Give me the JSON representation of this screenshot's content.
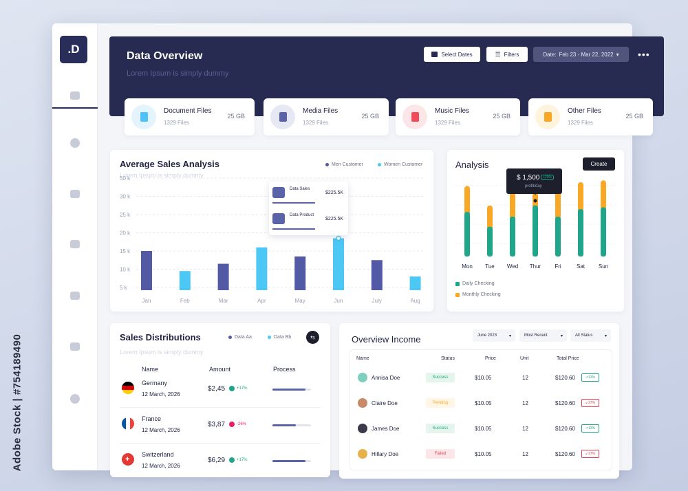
{
  "watermark": "Adobe Stock | #754189490",
  "brand": {
    "logo": ".D"
  },
  "header": {
    "title": "Data Overview",
    "subtitle": "Lorem Ipsum is simply dummy",
    "select_dates": "Select Dates",
    "filters": "Filters",
    "date_label": "Date:",
    "date_range": "Feb 23 - Mar 22, 2022",
    "more": "•••"
  },
  "files": [
    {
      "name": "Document Files",
      "count": "1329 Files",
      "size": "25 GB",
      "color": "#4fc3f7",
      "bg": "#e3f4fd"
    },
    {
      "name": "Media Files",
      "count": "1329 Files",
      "size": "25 GB",
      "color": "#5a63a8",
      "bg": "#e6e8f4"
    },
    {
      "name": "Music Files",
      "count": "1329 Files",
      "size": "25  GB",
      "color": "#ef4b5a",
      "bg": "#fde6e8"
    },
    {
      "name": "Other Files",
      "count": "1329 Files",
      "size": "25 GB",
      "color": "#f9a825",
      "bg": "#fef3dd"
    }
  ],
  "sales": {
    "title": "Average Sales Analysis",
    "subtitle": "Lorem Ipsum is simply dummy",
    "legend": [
      "Men Customer",
      "Women Customer"
    ],
    "tooltip": [
      {
        "label": "Data Sales",
        "value": "$225.5K"
      },
      {
        "label": "Data Product",
        "value": "$225.5K"
      }
    ]
  },
  "analysis": {
    "title": "Analysis",
    "create": "Create",
    "tooltip_value": "$ 1,500",
    "tooltip_badge": "+20%",
    "tooltip_sub": "profit/day",
    "legend": [
      "Daily Checking",
      "Monthly Checking"
    ]
  },
  "distribution": {
    "title": "Sales Distributions",
    "subtitle": "Lorem Ipsum is simply dummy",
    "legend": [
      "Data Aa",
      "Data Bb"
    ],
    "cols": [
      "Name",
      "Amount",
      "Process"
    ],
    "rows": [
      {
        "country": "Germany",
        "date": "12 March, 2026",
        "amount": "$2,45",
        "change": "+17%",
        "progress": 0.85
      },
      {
        "country": "France",
        "date": "12 March, 2026",
        "amount": "$3,87",
        "change": "-26%",
        "progress": 0.6
      },
      {
        "country": "Switzerland",
        "date": "12 March, 2026",
        "amount": "$6,29",
        "change": "+17%",
        "progress": 0.85
      }
    ]
  },
  "income": {
    "title": "Overview Income",
    "filters": [
      "June 2023",
      "Most Recent",
      "All Status"
    ],
    "cols": [
      "Name",
      "Status",
      "Price",
      "Unit",
      "Total Price"
    ],
    "rows": [
      {
        "name": "Annisa Doe",
        "status": "Success",
        "price": "$10.05",
        "unit": "12",
        "total": "$120.60",
        "trend": "13%",
        "up": true
      },
      {
        "name": "Claire Doe",
        "status": "Pending",
        "price": "$10.05",
        "unit": "12",
        "total": "$120.60",
        "trend": "27%",
        "up": false
      },
      {
        "name": "James Doe",
        "status": "Success",
        "price": "$10.05",
        "unit": "12",
        "total": "$120.60",
        "trend": "13%",
        "up": true
      },
      {
        "name": "Hillary Doe",
        "status": "Failed",
        "price": "$10.05",
        "unit": "12",
        "total": "$120.60",
        "trend": "27%",
        "up": false
      }
    ]
  },
  "chart_data": [
    {
      "type": "bar",
      "categories": [
        "Jan",
        "Feb",
        "Mar",
        "Apr",
        "May",
        "Jun",
        "July",
        "Aug"
      ],
      "series": [
        {
          "name": "Men Customer",
          "values": [
            15,
            null,
            11.5,
            null,
            13.5,
            null,
            12.5,
            null
          ]
        },
        {
          "name": "Women Customer",
          "values": [
            null,
            9.5,
            null,
            16,
            null,
            18.5,
            null,
            8
          ]
        }
      ],
      "yticks": [
        "5 k",
        "10 k",
        "15 k",
        "20 k",
        "25 k",
        "30 k",
        "50 k"
      ],
      "grid": true,
      "legend": "top-right"
    },
    {
      "type": "bar",
      "categories": [
        "Mon",
        "Tue",
        "Wed",
        "Thur",
        "Fri",
        "Sat",
        "Sun"
      ],
      "series": [
        {
          "name": "Daily Checking",
          "values": [
            48,
            32,
            43,
            55,
            43,
            51,
            53
          ]
        },
        {
          "name": "Monthly Checking",
          "values": [
            28,
            23,
            29,
            26,
            29,
            29,
            29
          ]
        }
      ],
      "stacked": true,
      "legend": "bottom-left"
    }
  ],
  "colors": {
    "men": "#525aa6",
    "women": "#4dc8f5",
    "daily": "#1fa589",
    "monthly": "#f9a825"
  }
}
